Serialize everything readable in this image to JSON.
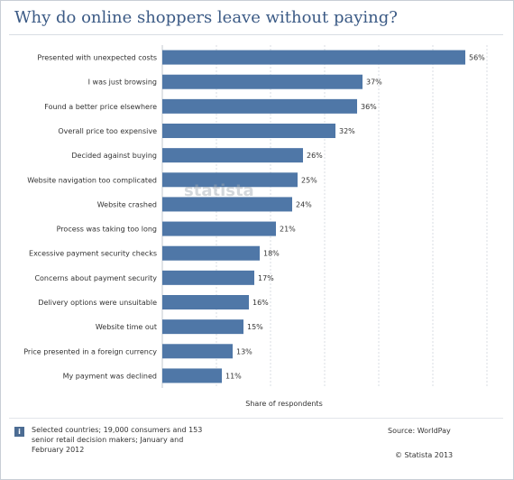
{
  "title": "Why do online shoppers leave without paying?",
  "chart_data": {
    "type": "bar",
    "orientation": "horizontal",
    "categories": [
      "Presented with unexpected costs",
      "I was just browsing",
      "Found a better price elsewhere",
      "Overall price too expensive",
      "Decided against buying",
      "Website navigation too complicated",
      "Website crashed",
      "Process was taking too long",
      "Excessive payment security checks",
      "Concerns about payment security",
      "Delivery options were unsuitable",
      "Website time out",
      "Price presented in a foreign currency",
      "My payment was declined"
    ],
    "values": [
      56,
      37,
      36,
      32,
      26,
      25,
      24,
      21,
      18,
      17,
      16,
      15,
      13,
      11
    ],
    "value_labels": [
      "56%",
      "37%",
      "36%",
      "32%",
      "26%",
      "25%",
      "24%",
      "21%",
      "18%",
      "17%",
      "16%",
      "15%",
      "13%",
      "11%"
    ],
    "xlabel": "Share of respondents",
    "ylabel": "",
    "xlim": [
      0,
      60
    ],
    "grid": true,
    "bar_color": "#4f77a7"
  },
  "watermark": "statista",
  "footer": {
    "info_icon": "info-icon",
    "note": "Selected countries; 19,000 consumers and 153 senior retail decision makers; January and February 2012",
    "source": "Source: WorldPay",
    "copyright": "© Statista 2013"
  }
}
